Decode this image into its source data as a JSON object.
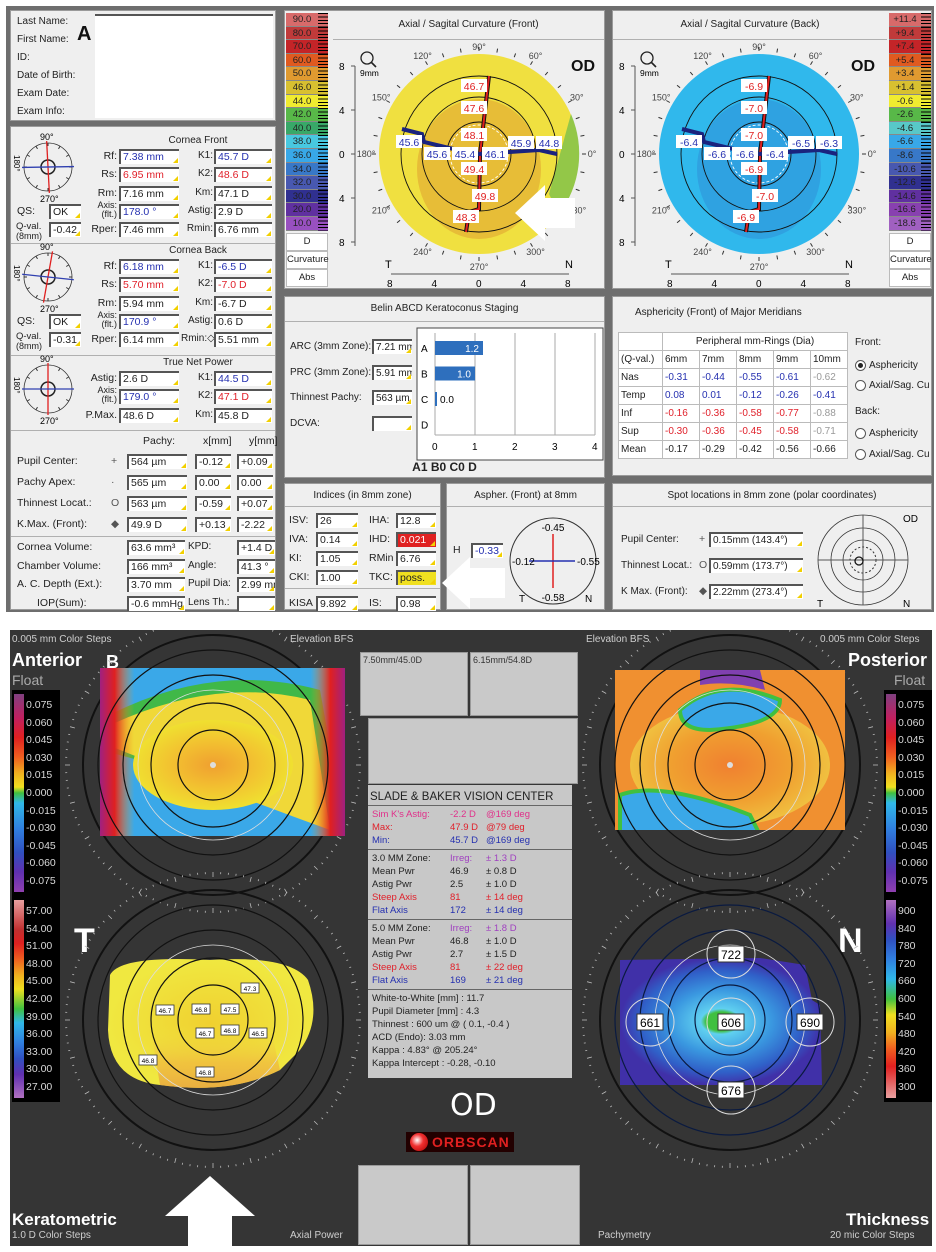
{
  "panel_letters": {
    "top": "A",
    "bottom": "B"
  },
  "patient": {
    "labels": [
      "Last Name:",
      "First Name:",
      "ID:",
      "Date of Birth:",
      "Exam Date:",
      "Exam Info:"
    ]
  },
  "compass_labels": {
    "top": "90°",
    "left": "180°",
    "bottom": "270°"
  },
  "cornea_front": {
    "title": "Cornea Front",
    "qs_label": "QS:",
    "qs": "OK",
    "qval_label": "Q-val.",
    "qval_sub": "(8mm)",
    "qval": "-0.42",
    "rows": [
      {
        "l": "Rf:",
        "v": "7.38 mm",
        "c": "blue",
        "l2": "K1:",
        "v2": "45.7 D",
        "c2": "blue"
      },
      {
        "l": "Rs:",
        "v": "6.95 mm",
        "c": "red",
        "l2": "K2:",
        "v2": "48.6 D",
        "c2": "red"
      },
      {
        "l": "Rm:",
        "v": "7.16 mm",
        "c": "black",
        "l2": "Km:",
        "v2": "47.1 D",
        "c2": "black"
      },
      {
        "l": "Axis: (flt.)",
        "v": "178.0 °",
        "c": "blue",
        "l2": "Astig:",
        "v2": "2.9 D",
        "c2": "black"
      },
      {
        "l": "Rper:",
        "v": "7.46 mm",
        "c": "black",
        "l2": "Rmin:",
        "v2": "6.76 mm",
        "c2": "black"
      }
    ]
  },
  "cornea_back": {
    "title": "Cornea Back",
    "qs_label": "QS:",
    "qs": "OK",
    "qval_label": "Q-val.",
    "qval_sub": "(8mm)",
    "qval": "-0.31",
    "rows": [
      {
        "l": "Rf:",
        "v": "6.18 mm",
        "c": "blue",
        "l2": "K1:",
        "v2": "-6.5 D",
        "c2": "blue"
      },
      {
        "l": "Rs:",
        "v": "5.70 mm",
        "c": "red",
        "l2": "K2:",
        "v2": "-7.0 D",
        "c2": "red"
      },
      {
        "l": "Rm:",
        "v": "5.94 mm",
        "c": "black",
        "l2": "Km:",
        "v2": "-6.7 D",
        "c2": "black"
      },
      {
        "l": "Axis: (flt.)",
        "v": "170.9 °",
        "c": "blue",
        "l2": "Astig:",
        "v2": "0.6 D",
        "c2": "black"
      },
      {
        "l": "Rper:",
        "v": "6.14 mm",
        "c": "black",
        "l2": "Rmin:◇",
        "v2": "5.51 mm",
        "c2": "black"
      }
    ]
  },
  "true_net_power": {
    "title": "True Net Power",
    "rows": [
      {
        "l": "Astig:",
        "v": "2.6 D",
        "c": "black",
        "l2": "K1:",
        "v2": "44.5 D",
        "c2": "blue"
      },
      {
        "l": "Axis: (flt.)",
        "v": "179.0 °",
        "c": "blue",
        "l2": "K2:",
        "v2": "47.1 D",
        "c2": "red"
      },
      {
        "l": "P.Max.",
        "v": "48.6 D",
        "c": "black",
        "l2": "Km:",
        "v2": "45.8 D",
        "c2": "black"
      }
    ]
  },
  "pachy": {
    "headers": [
      "Pachy:",
      "x[mm]",
      "y[mm]"
    ],
    "rows": [
      {
        "label": "Pupil Center:",
        "sym": "+",
        "pachy": "564 µm",
        "x": "-0.12",
        "y": "+0.09"
      },
      {
        "label": "Pachy Apex:",
        "sym": "·",
        "pachy": "565 µm",
        "x": "0.00",
        "y": "0.00"
      },
      {
        "label": "Thinnest Locat.:",
        "sym": "O",
        "pachy": "563 µm",
        "x": "-0.59",
        "y": "+0.07"
      },
      {
        "label": "K.Max. (Front):",
        "sym": "◆",
        "pachy": "49.9 D",
        "x": "+0.13",
        "y": "-2.22"
      }
    ]
  },
  "volumes": [
    {
      "l": "Cornea Volume:",
      "v": "63.6 mm³",
      "l2": "KPD:",
      "v2": "+1.4 D"
    },
    {
      "l": "Chamber Volume:",
      "v": "166 mm³",
      "l2": "Angle:",
      "v2": "41.3 °"
    },
    {
      "l": "A. C. Depth (Ext.):",
      "v": "3.70 mm",
      "l2": "Pupil Dia:",
      "v2": "2.99 mm"
    },
    {
      "l": "IOP(Sum):",
      "v": "-0.6 mmHg",
      "l2": "Lens Th.:",
      "v2": ""
    }
  ],
  "front_map": {
    "title": "Axial / Sagital Curvature (Front)",
    "eye": "OD",
    "zoom": "9mm",
    "angles": [
      "90°",
      "120°",
      "150°",
      "180°",
      "210°",
      "240°",
      "270°",
      "300°",
      "330°",
      "0°",
      "30°",
      "60°"
    ],
    "axis_ticks": [
      "8",
      "4",
      "0",
      "4",
      "8"
    ],
    "left": "T",
    "right": "N",
    "steep_values": [
      "46.7",
      "47.6",
      "48.1",
      "49.4",
      "49.8",
      "48.3"
    ],
    "flat_values": [
      "45.6",
      "45.6",
      "45.4",
      "46.1",
      "45.9",
      "44.8"
    ],
    "scale": {
      "labels": [
        "90.0",
        "80.0",
        "70.0",
        "60.0",
        "50.0",
        "46.0",
        "44.0",
        "42.0",
        "40.0",
        "38.0",
        "36.0",
        "34.0",
        "32.0",
        "30.0",
        "20.0",
        "10.0"
      ],
      "colors": [
        "#d86a6a",
        "#c03a3a",
        "#c42428",
        "#e05a20",
        "#e09a30",
        "#d8c030",
        "#f0ec30",
        "#58b848",
        "#38a868",
        "#48c8e0",
        "#38a8e8",
        "#3878c8",
        "#4858b0",
        "#303090",
        "#6030a0",
        "#9850c0"
      ],
      "unit": "D",
      "type": "Curvature",
      "mode": "Abs"
    }
  },
  "back_map": {
    "title": "Axial / Sagital Curvature (Back)",
    "eye": "OD",
    "zoom": "9mm",
    "axis_ticks": [
      "8",
      "4",
      "0",
      "4",
      "8"
    ],
    "left": "T",
    "right": "N",
    "steep_values": [
      "-6.9",
      "-7.0",
      "-7.0",
      "-6.9",
      "-7.0",
      "-6.9"
    ],
    "flat_values": [
      "-6.4",
      "-6.6",
      "-6.6",
      "-6.4",
      "-6.5",
      "-6.3"
    ],
    "scale": {
      "labels": [
        "+11.4",
        "+9.4",
        "+7.4",
        "+5.4",
        "+3.4",
        "+1.4",
        "-0.6",
        "-2.6",
        "-4.6",
        "-6.6",
        "-8.6",
        "-10.6",
        "-12.6",
        "-14.6",
        "-16.6",
        "-18.6"
      ],
      "colors": [
        "#d86a6a",
        "#c03a3a",
        "#c42428",
        "#e05a20",
        "#e09a30",
        "#d8c030",
        "#f0ec30",
        "#58b848",
        "#58c8c8",
        "#38a8e8",
        "#3878c8",
        "#4858b0",
        "#303090",
        "#6030a0",
        "#8840b0",
        "#a060c0"
      ],
      "unit": "D",
      "type": "Curvature",
      "mode": "Abs"
    }
  },
  "belin": {
    "title": "Belin ABCD Keratoconus Staging",
    "fields": [
      {
        "label": "ARC (3mm Zone):",
        "value": "7.21 mm"
      },
      {
        "label": "PRC (3mm Zone):",
        "value": "5.91 mm"
      },
      {
        "label": "Thinnest Pachy:",
        "value": "563 µm"
      },
      {
        "label": "DCVA:",
        "value": ""
      }
    ],
    "bars": [
      {
        "cat": "A",
        "value": 1.2,
        "label": "1.2"
      },
      {
        "cat": "B",
        "value": 1.0,
        "label": "1.0"
      },
      {
        "cat": "C",
        "value": 0.0,
        "label": "0.0"
      },
      {
        "cat": "D",
        "value": null,
        "label": ""
      }
    ],
    "x_ticks": [
      "0",
      "1",
      "2",
      "3",
      "4"
    ],
    "xlim": [
      0,
      4
    ],
    "result": "A1 B0 C0 D",
    "bar_color": "#2e6fbd"
  },
  "indices": {
    "title": "Indices (in 8mm zone)",
    "rows": [
      {
        "l": "ISV:",
        "v": "26",
        "l2": "IHA:",
        "v2": "12.8",
        "hl2": ""
      },
      {
        "l": "IVA:",
        "v": "0.14",
        "l2": "IHD:",
        "v2": "0.021",
        "hl2": "#e02020"
      },
      {
        "l": "KI:",
        "v": "1.05",
        "l2": "RMin",
        "v2": "6.76",
        "hl2": ""
      },
      {
        "l": "CKI:",
        "v": "1.00",
        "l2": "TKC:",
        "v2": "poss.",
        "hl2": "#f0e020"
      },
      {
        "l": "KISA",
        "v": "9.892",
        "l2": "IS:",
        "v2": "0.98",
        "hl2": ""
      }
    ]
  },
  "aspher_8mm": {
    "title": "Aspher. (Front) at 8mm",
    "h_label": "H",
    "h_value": "-0.33",
    "top": "-0.45",
    "left": "-0.12",
    "right": "-0.55",
    "bottom": "-0.58",
    "t": "T",
    "n": "N"
  },
  "asphericity": {
    "title": "Asphericity (Front) of Major Meridians",
    "group_header": "Peripheral mm-Rings (Dia)",
    "columns": [
      "(Q-val.)",
      "6mm",
      "7mm",
      "8mm",
      "9mm",
      "10mm"
    ],
    "rows": [
      {
        "name": "Nas",
        "vals": [
          "-0.31",
          "-0.44",
          "-0.55",
          "-0.61",
          "-0.62"
        ],
        "cols": [
          "blue",
          "blue",
          "blue",
          "blue",
          "gray"
        ]
      },
      {
        "name": "Temp",
        "vals": [
          "0.08",
          "0.01",
          "-0.12",
          "-0.26",
          "-0.41"
        ],
        "cols": [
          "blue",
          "blue",
          "blue",
          "blue",
          "blue"
        ]
      },
      {
        "name": "Inf",
        "vals": [
          "-0.16",
          "-0.36",
          "-0.58",
          "-0.77",
          "-0.88"
        ],
        "cols": [
          "red",
          "red",
          "red",
          "red",
          "gray"
        ]
      },
      {
        "name": "Sup",
        "vals": [
          "-0.30",
          "-0.36",
          "-0.45",
          "-0.58",
          "-0.71"
        ],
        "cols": [
          "red",
          "red",
          "red",
          "red",
          "gray"
        ]
      },
      {
        "name": "Mean",
        "vals": [
          "-0.17",
          "-0.29",
          "-0.42",
          "-0.56",
          "-0.66"
        ],
        "cols": [
          "black",
          "black",
          "black",
          "black",
          "black"
        ]
      }
    ],
    "front_label": "Front:",
    "back_label": "Back:",
    "options": [
      {
        "group": "front",
        "label": "Asphericity",
        "selected": true
      },
      {
        "group": "front",
        "label": "Axial/Sag. Cu",
        "selected": false
      },
      {
        "group": "back",
        "label": "Asphericity",
        "selected": false
      },
      {
        "group": "back",
        "label": "Axial/Sag. Cu",
        "selected": false
      }
    ]
  },
  "spots": {
    "title": "Spot locations in 8mm zone (polar coordinates)",
    "rows": [
      {
        "label": "Pupil Center:",
        "sym": "+",
        "value": "0.15mm (143.4°)"
      },
      {
        "label": "Thinnest Locat.:",
        "sym": "O",
        "value": "0.59mm (173.7°)"
      },
      {
        "label": "K Max. (Front):",
        "sym": "◆",
        "value": "2.22mm (273.4°)"
      }
    ],
    "eye": "OD",
    "t": "T",
    "n": "N"
  },
  "orbscan": {
    "color_steps_float": "0.005 mm Color Steps",
    "elevation_bfs": "Elevation BFS",
    "anterior": "Anterior",
    "posterior": "Posterior",
    "float": "Float",
    "keratometric": "Keratometric",
    "kerato_steps": "1.0 D Color Steps",
    "axial_power": "Axial Power",
    "pachymetry": "Pachymetry",
    "thickness": "Thickness",
    "thickness_steps": "20 mic Color Steps",
    "t": "T",
    "n": "N",
    "eye": "OD",
    "logo": "ORBSCAN",
    "box1": "7.50mm/45.0D",
    "box2": "6.15mm/54.8D",
    "float_scale": [
      "0.075",
      "0.060",
      "0.045",
      "0.030",
      "0.015",
      "0.000",
      "-0.015",
      "-0.030",
      "-0.045",
      "-0.060",
      "-0.075"
    ],
    "float_colors": [
      "#804080",
      "#c02060",
      "#e02020",
      "#f06020",
      "#f0b020",
      "#40c040",
      "#30b8e8",
      "#3080e0",
      "#3050c0",
      "#6030b0",
      "#9040b0"
    ],
    "kerato_scale": [
      "57.00",
      "54.00",
      "51.00",
      "48.00",
      "45.00",
      "42.00",
      "39.00",
      "36.00",
      "33.00",
      "30.00",
      "27.00"
    ],
    "thickness_scale": [
      "900",
      "840",
      "780",
      "720",
      "660",
      "600",
      "540",
      "480",
      "420",
      "360",
      "300"
    ],
    "kerato_labels": [
      "47.3",
      "46.7",
      "46.8",
      "47.5",
      "46.7",
      "46.8",
      "46.5",
      "46.8",
      "46.8"
    ],
    "pachy_labels": [
      "722",
      "661",
      "606",
      "690",
      "676"
    ],
    "info": {
      "clinic": "SLADE & BAKER VISION CENTER",
      "simk": [
        {
          "a": "Sim K's Astig:",
          "b": "-2.2 D",
          "c": "@169 deg",
          "col": "magenta"
        },
        {
          "a": "Max:",
          "b": "47.9 D",
          "c": "@79 deg",
          "col": "red"
        },
        {
          "a": "Min:",
          "b": "45.7 D",
          "c": "@169 deg",
          "col": "blue"
        }
      ],
      "zone3": [
        {
          "a": "3.0 MM Zone:",
          "b": "Irreg:",
          "c": "± 1.3 D",
          "col": "black",
          "col2": "purple"
        },
        {
          "a": "Mean Pwr",
          "b": "46.9",
          "c": "± 0.8 D",
          "col": "black",
          "col2": "black"
        },
        {
          "a": "Astig Pwr",
          "b": "2.5",
          "c": "± 1.0 D",
          "col": "black",
          "col2": "black"
        },
        {
          "a": "Steep Axis",
          "b": "81",
          "c": "± 14 deg",
          "col": "red",
          "col2": "red"
        },
        {
          "a": "Flat Axis",
          "b": "172",
          "c": "± 14 deg",
          "col": "blue",
          "col2": "blue"
        }
      ],
      "zone5": [
        {
          "a": "5.0 MM Zone:",
          "b": "Irreg:",
          "c": "± 1.8 D",
          "col": "black",
          "col2": "purple"
        },
        {
          "a": "Mean Pwr",
          "b": "46.8",
          "c": "± 1.0 D",
          "col": "black",
          "col2": "black"
        },
        {
          "a": "Astig Pwr",
          "b": "2.7",
          "c": "± 1.5 D",
          "col": "black",
          "col2": "black"
        },
        {
          "a": "Steep Axis",
          "b": "81",
          "c": "± 22 deg",
          "col": "red",
          "col2": "red"
        },
        {
          "a": "Flat Axis",
          "b": "169",
          "c": "± 21 deg",
          "col": "blue",
          "col2": "blue"
        }
      ],
      "misc": [
        "White-to-White [mm] : 11.7",
        "Pupil Diameter [mm] :  4.3",
        "Thinnest : 600 um @ ( 0.1, -0.4 )",
        "ACD (Endo): 3.03 mm",
        "Kappa : 4.83° @ 205.24°",
        "Kappa Intercept : -0.28, -0.10"
      ]
    }
  }
}
